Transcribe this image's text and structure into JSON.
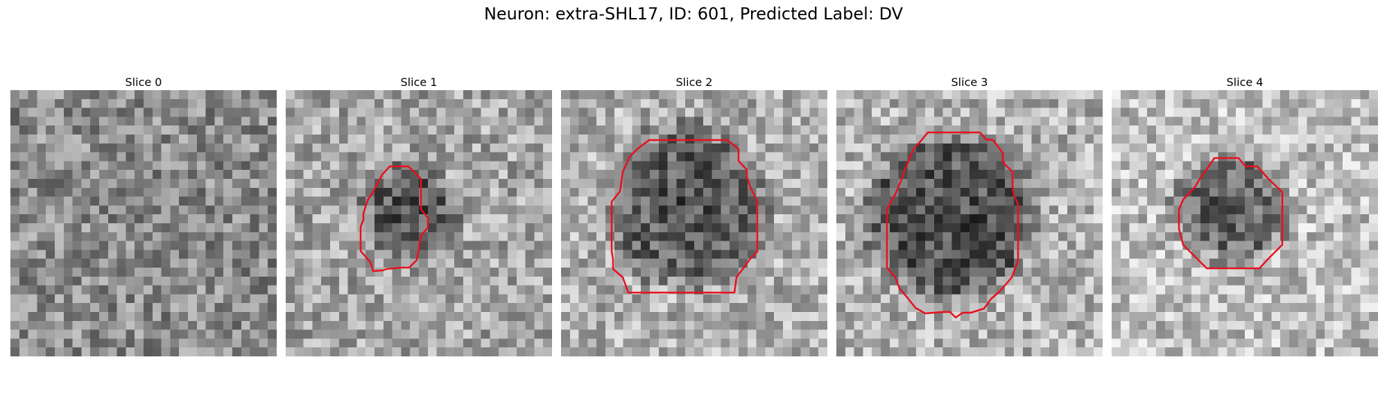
{
  "figure": {
    "title": "Neuron: extra-SHL17, ID: 601, Predicted Label: DV"
  },
  "colors": {
    "contour": "#e8101e",
    "background": "#ffffff"
  },
  "grid_size": 30,
  "panels": [
    {
      "title": "Slice 0",
      "has_contour": false
    },
    {
      "title": "Slice 1",
      "has_contour": true
    },
    {
      "title": "Slice 2",
      "has_contour": true
    },
    {
      "title": "Slice 3",
      "has_contour": true
    },
    {
      "title": "Slice 4",
      "has_contour": true
    }
  ]
}
